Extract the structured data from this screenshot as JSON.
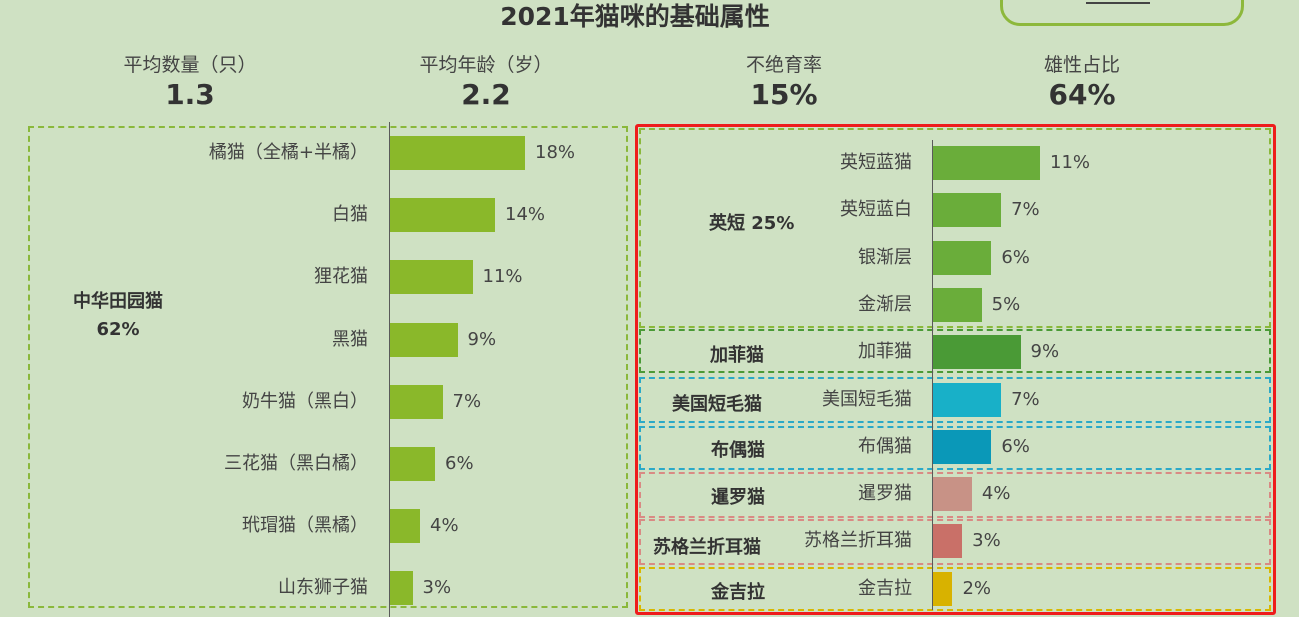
{
  "title": "2021年猫咪的基础属性",
  "stats": [
    {
      "label": "平均数量（只）",
      "value": "1.3"
    },
    {
      "label": "平均年龄（岁）",
      "value": "2.2"
    },
    {
      "label": "不绝育率",
      "value": "15%"
    },
    {
      "label": "雄性占比",
      "value": "64%"
    }
  ],
  "left_group": {
    "name": "中华田园猫",
    "share": "62%"
  },
  "right_groups": [
    {
      "name": "英短 25%",
      "color": "#6aad3a"
    },
    {
      "name": "加菲猫",
      "color": "#4a9a36"
    },
    {
      "name": "美国短毛猫",
      "color": "#18b0c8"
    },
    {
      "name": "布偶猫",
      "color": "#0a98b8"
    },
    {
      "name": "暹罗猫",
      "color": "#c89286"
    },
    {
      "name": "苏格兰折耳猫",
      "color": "#c97068"
    },
    {
      "name": "金吉拉",
      "color": "#d8b200"
    }
  ],
  "chart_data": [
    {
      "type": "bar",
      "orientation": "horizontal",
      "title": "",
      "categories": [
        "橘猫（全橘+半橘）",
        "白猫",
        "狸花猫",
        "黑猫",
        "奶牛猫（黑白）",
        "三花猫（黑白橘）",
        "玳瑁猫（黑橘）",
        "山东狮子猫"
      ],
      "values": [
        18,
        14,
        11,
        9,
        7,
        6,
        4,
        3
      ],
      "value_labels": [
        "18%",
        "14%",
        "11%",
        "9%",
        "7%",
        "6%",
        "4%",
        "3%"
      ],
      "bar_color": "#8ab82a",
      "xlim": [
        0,
        18
      ],
      "grid": false
    },
    {
      "type": "bar",
      "orientation": "horizontal",
      "title": "",
      "categories": [
        "英短蓝猫",
        "英短蓝白",
        "银渐层",
        "金渐层",
        "加菲猫",
        "美国短毛猫",
        "布偶猫",
        "暹罗猫",
        "苏格兰折耳猫",
        "金吉拉"
      ],
      "values": [
        11,
        7,
        6,
        5,
        9,
        7,
        6,
        4,
        3,
        2
      ],
      "value_labels": [
        "11%",
        "7%",
        "6%",
        "5%",
        "9%",
        "7%",
        "6%",
        "4%",
        "3%",
        "2%"
      ],
      "bar_colors": [
        "#6aad3a",
        "#6aad3a",
        "#6aad3a",
        "#6aad3a",
        "#4a9a36",
        "#18b0c8",
        "#0a98b8",
        "#c89286",
        "#c97068",
        "#d8b200"
      ],
      "xlim": [
        0,
        11
      ],
      "grid": false
    }
  ]
}
